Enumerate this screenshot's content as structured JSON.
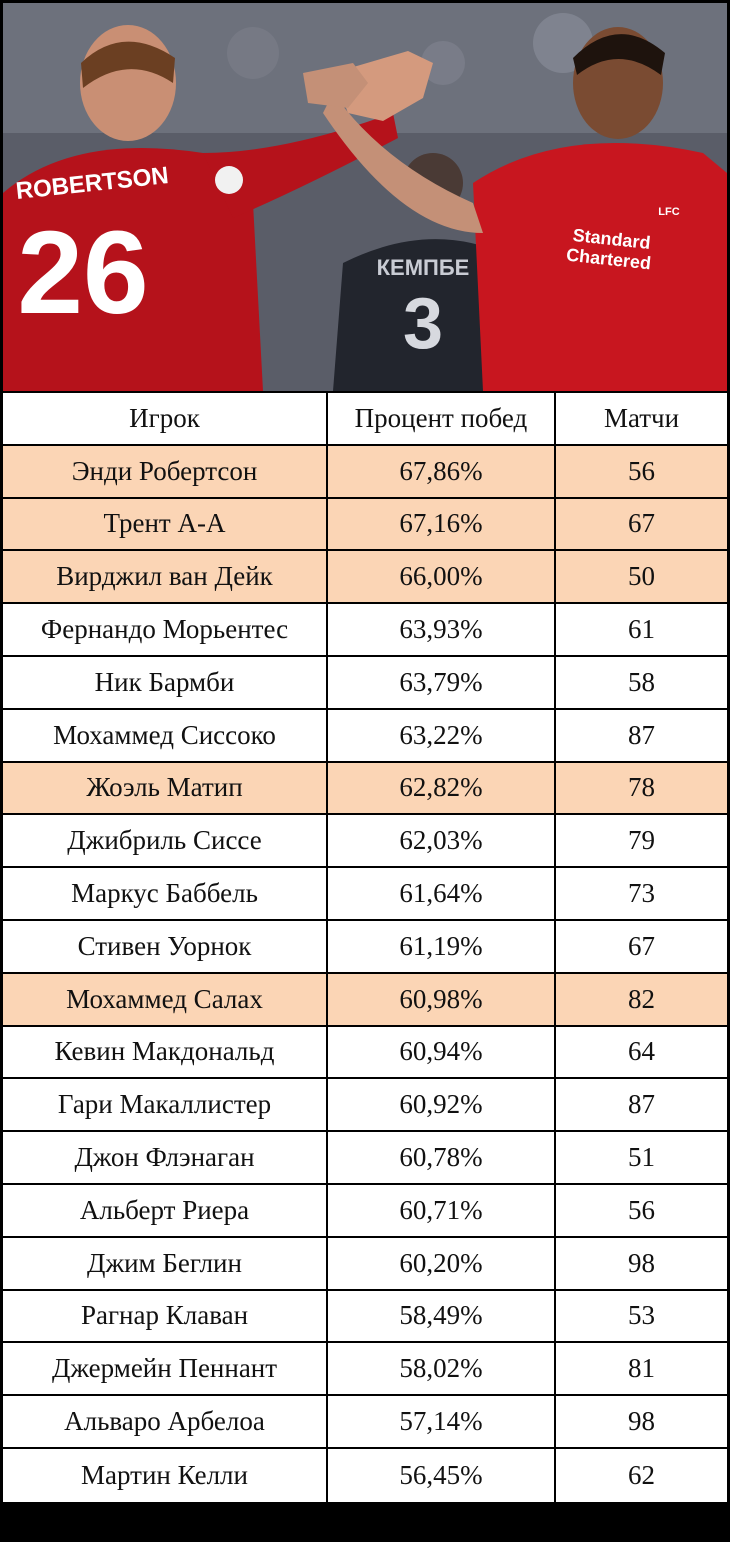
{
  "photo": {
    "left_player_name": "ROBERTSON",
    "left_player_number": "26",
    "right_sponsor_line1": "Standard",
    "right_sponsor_line2": "Chartered",
    "right_club_crest": "LFC",
    "background_player_number": "3",
    "background_player_name": "КЕМПБЕ"
  },
  "colors": {
    "highlight_row": "#fbd5b5",
    "normal_row": "#ffffff",
    "liverpool_red": "#b5121b"
  },
  "table": {
    "headers": [
      "Игрок",
      "Процент побед",
      "Матчи"
    ],
    "rows": [
      {
        "player": "Энди Робертсон",
        "win_pct": "67,86%",
        "matches": "56",
        "highlight": true
      },
      {
        "player": "Трент А-А",
        "win_pct": "67,16%",
        "matches": "67",
        "highlight": true
      },
      {
        "player": "Вирджил ван Дейк",
        "win_pct": "66,00%",
        "matches": "50",
        "highlight": true
      },
      {
        "player": "Фернандо Морьентес",
        "win_pct": "63,93%",
        "matches": "61",
        "highlight": false
      },
      {
        "player": "Ник Бармби",
        "win_pct": "63,79%",
        "matches": "58",
        "highlight": false
      },
      {
        "player": "Мохаммед Сиссоко",
        "win_pct": "63,22%",
        "matches": "87",
        "highlight": false
      },
      {
        "player": "Жоэль Матип",
        "win_pct": "62,82%",
        "matches": "78",
        "highlight": true
      },
      {
        "player": "Джибриль Сиссе",
        "win_pct": "62,03%",
        "matches": "79",
        "highlight": false
      },
      {
        "player": "Маркус Баббель",
        "win_pct": "61,64%",
        "matches": "73",
        "highlight": false
      },
      {
        "player": "Стивен Уорнок",
        "win_pct": "61,19%",
        "matches": "67",
        "highlight": false
      },
      {
        "player": "Мохаммед Салах",
        "win_pct": "60,98%",
        "matches": "82",
        "highlight": true
      },
      {
        "player": "Кевин Макдональд",
        "win_pct": "60,94%",
        "matches": "64",
        "highlight": false
      },
      {
        "player": "Гари Макаллистер",
        "win_pct": "60,92%",
        "matches": "87",
        "highlight": false
      },
      {
        "player": "Джон Флэнаган",
        "win_pct": "60,78%",
        "matches": "51",
        "highlight": false
      },
      {
        "player": "Альберт Риера",
        "win_pct": "60,71%",
        "matches": "56",
        "highlight": false
      },
      {
        "player": "Джим Беглин",
        "win_pct": "60,20%",
        "matches": "98",
        "highlight": false
      },
      {
        "player": "Рагнар Клаван",
        "win_pct": "58,49%",
        "matches": "53",
        "highlight": false
      },
      {
        "player": "Джермейн Пеннант",
        "win_pct": "58,02%",
        "matches": "81",
        "highlight": false
      },
      {
        "player": "Альваро Арбелоа",
        "win_pct": "57,14%",
        "matches": "98",
        "highlight": false
      },
      {
        "player": "Мартин Келли",
        "win_pct": "56,45%",
        "matches": "62",
        "highlight": false
      }
    ]
  }
}
